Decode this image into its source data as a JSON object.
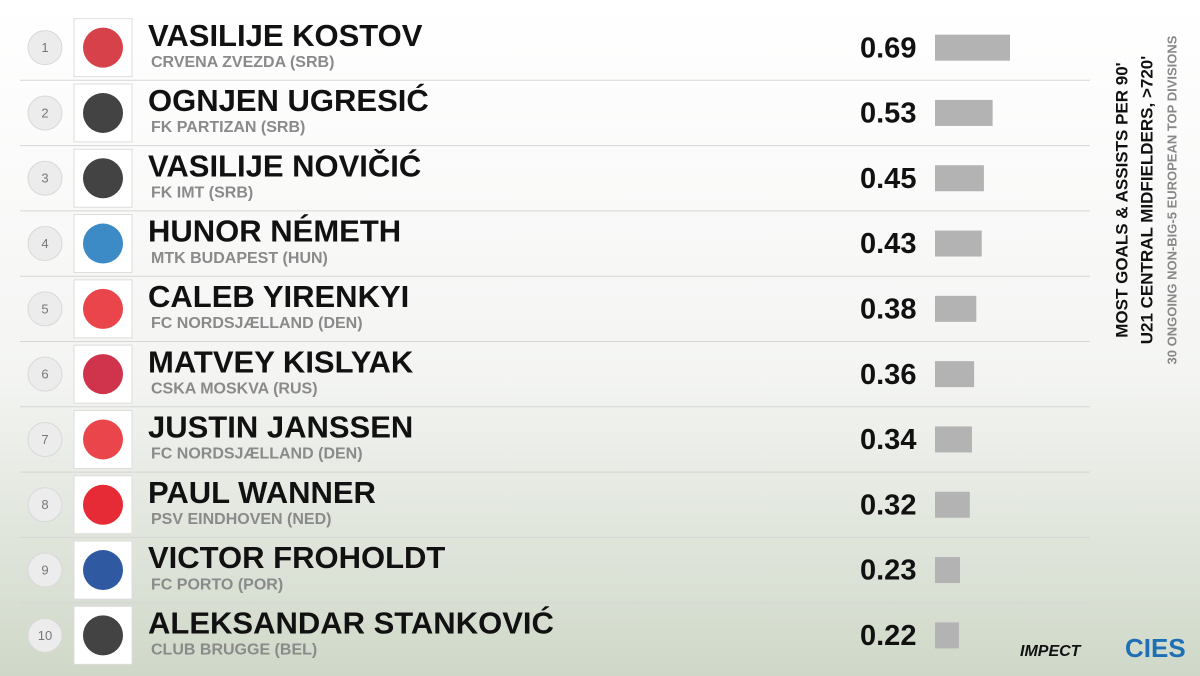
{
  "chart_data": {
    "type": "bar",
    "title": "MOST GOALS & ASSISTS PER 90'",
    "subtitle": "U21 CENTRAL MIDFIELDERS, >720'",
    "note": "30 ONGOING NON-BIG-5 EUROPEAN TOP DIVISIONS",
    "ranks": [
      "1",
      "2",
      "3",
      "4",
      "5",
      "6",
      "7",
      "8",
      "9",
      "10"
    ],
    "categories": [
      "VASILIJE KOSTOV",
      "OGNJEN UGRESIĆ",
      "VASILIJE NOVIČIĆ",
      "HUNOR NÉMETH",
      "CALEB YIRENKYI",
      "MATVEY KISLYAK",
      "JUSTIN JANSSEN",
      "PAUL WANNER",
      "VICTOR FROHOLDT",
      "ALEKSANDAR STANKOVIĆ"
    ],
    "clubs": [
      "CRVENA ZVEZDA (SRB)",
      "FK PARTIZAN (SRB)",
      "FK IMT (SRB)",
      "MTK BUDAPEST (HUN)",
      "FC NORDSJÆLLAND (DEN)",
      "CSKA MOSKVA (RUS)",
      "FC NORDSJÆLLAND (DEN)",
      "PSV EINDHOVEN (NED)",
      "FC PORTO (POR)",
      "CLUB BRUGGE (BEL)"
    ],
    "values": [
      0.69,
      0.53,
      0.45,
      0.43,
      0.38,
      0.36,
      0.34,
      0.32,
      0.23,
      0.22
    ],
    "color": "#b3b3b3",
    "brands": [
      "IMPECT",
      "CIES"
    ]
  }
}
